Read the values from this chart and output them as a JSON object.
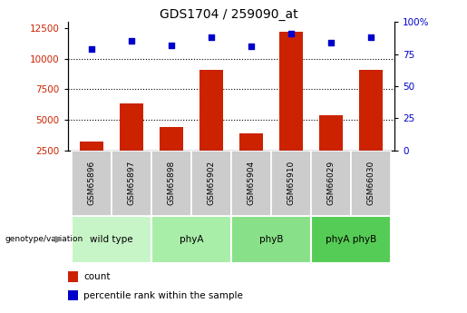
{
  "title": "GDS1704 / 259090_at",
  "samples": [
    "GSM65896",
    "GSM65897",
    "GSM65898",
    "GSM65902",
    "GSM65904",
    "GSM65910",
    "GSM66029",
    "GSM66030"
  ],
  "counts": [
    3200,
    6300,
    4400,
    9100,
    3900,
    12200,
    5400,
    9100
  ],
  "percentile_ranks": [
    79,
    85,
    82,
    88,
    81,
    91,
    84,
    88
  ],
  "groups": [
    {
      "label": "wild type",
      "start": 0,
      "end": 2,
      "color": "#c8f5c8"
    },
    {
      "label": "phyA",
      "start": 2,
      "end": 4,
      "color": "#a8eda8"
    },
    {
      "label": "phyB",
      "start": 4,
      "end": 6,
      "color": "#88e088"
    },
    {
      "label": "phyA phyB",
      "start": 6,
      "end": 8,
      "color": "#55cc55"
    }
  ],
  "bar_color": "#cc2200",
  "dot_color": "#0000cc",
  "ylim_left": [
    2500,
    13000
  ],
  "ylim_right": [
    0,
    100
  ],
  "yticks_left": [
    2500,
    5000,
    7500,
    10000,
    12500
  ],
  "yticks_right": [
    0,
    25,
    50,
    75,
    100
  ],
  "grid_values": [
    5000,
    7500,
    10000
  ],
  "ylabel_left_color": "#cc2200",
  "ylabel_right_color": "#0000cc",
  "sample_box_color": "#cccccc",
  "legend_count_label": "count",
  "legend_pct_label": "percentile rank within the sample",
  "genotype_label": "genotype/variation"
}
